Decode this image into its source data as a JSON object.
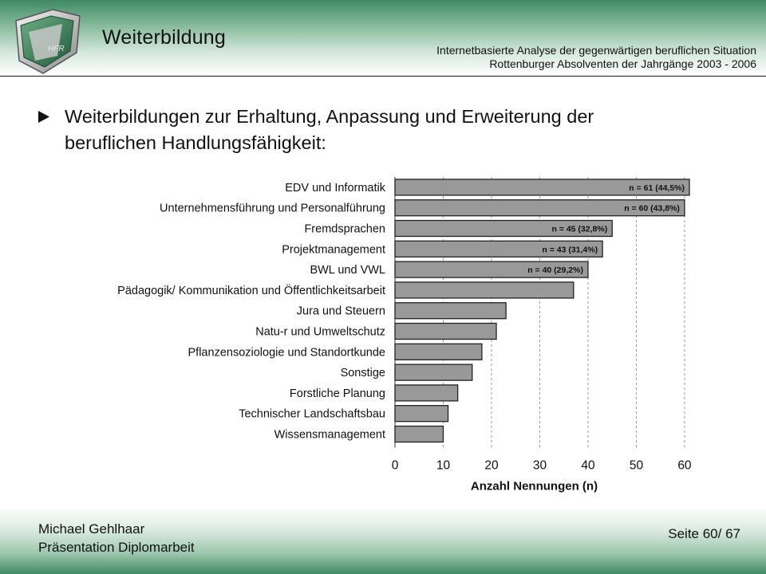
{
  "header": {
    "title": "Weiterbildung",
    "subtitle_line1": "Internetbasierte Analyse der gegenwärtigen beruflichen Situation",
    "subtitle_line2": "Rottenburger Absolventen der Jahrgänge 2003 - 2006",
    "logo_text": "HFR",
    "accent_color": "#3f8a64"
  },
  "bullet": {
    "icon": "triangle-right-icon",
    "text_line1": "Weiterbildungen zur Erhaltung, Anpassung und Erweiterung der",
    "text_line2": "beruflichen Handlungsfähigkeit:"
  },
  "chart_data": {
    "type": "bar",
    "orientation": "horizontal",
    "categories": [
      "EDV und Informatik",
      "Unternehmensführung und Personalführung",
      "Fremdsprachen",
      "Projektmanagement",
      "BWL und VWL",
      "Pädagogik/ Kommunikation und Öffentlichkeitsarbeit",
      "Jura und Steuern",
      "Natu-r und Umweltschutz",
      "Pflanzensoziologie und Standortkunde",
      "Sonstige",
      "Forstliche Planung",
      "Technischer Landschaftsbau",
      "Wissensmanagement"
    ],
    "values": [
      61,
      60,
      45,
      43,
      40,
      37,
      23,
      21,
      18,
      16,
      13,
      11,
      10
    ],
    "data_labels": [
      "n = 61 (44,5%)",
      "n = 60 (43,8%)",
      "n = 45 (32,8%)",
      "n = 43 (31,4%)",
      "n = 40 (29,2%)",
      "",
      "",
      "",
      "",
      "",
      "",
      "",
      ""
    ],
    "x_ticks": [
      "0",
      "10",
      "20",
      "30",
      "40",
      "50",
      "60"
    ],
    "xlim": [
      0,
      61
    ],
    "xlabel": "Anzahl Nennungen (n)",
    "ylabel": "",
    "title": "",
    "grid": "vertical dashed",
    "bar_color": "#999999",
    "bar_edge_color": "#222222"
  },
  "footer": {
    "author": "Michael Gehlhaar",
    "subtitle": "Präsentation Diplomarbeit",
    "page": "Seite 60/ 67"
  }
}
